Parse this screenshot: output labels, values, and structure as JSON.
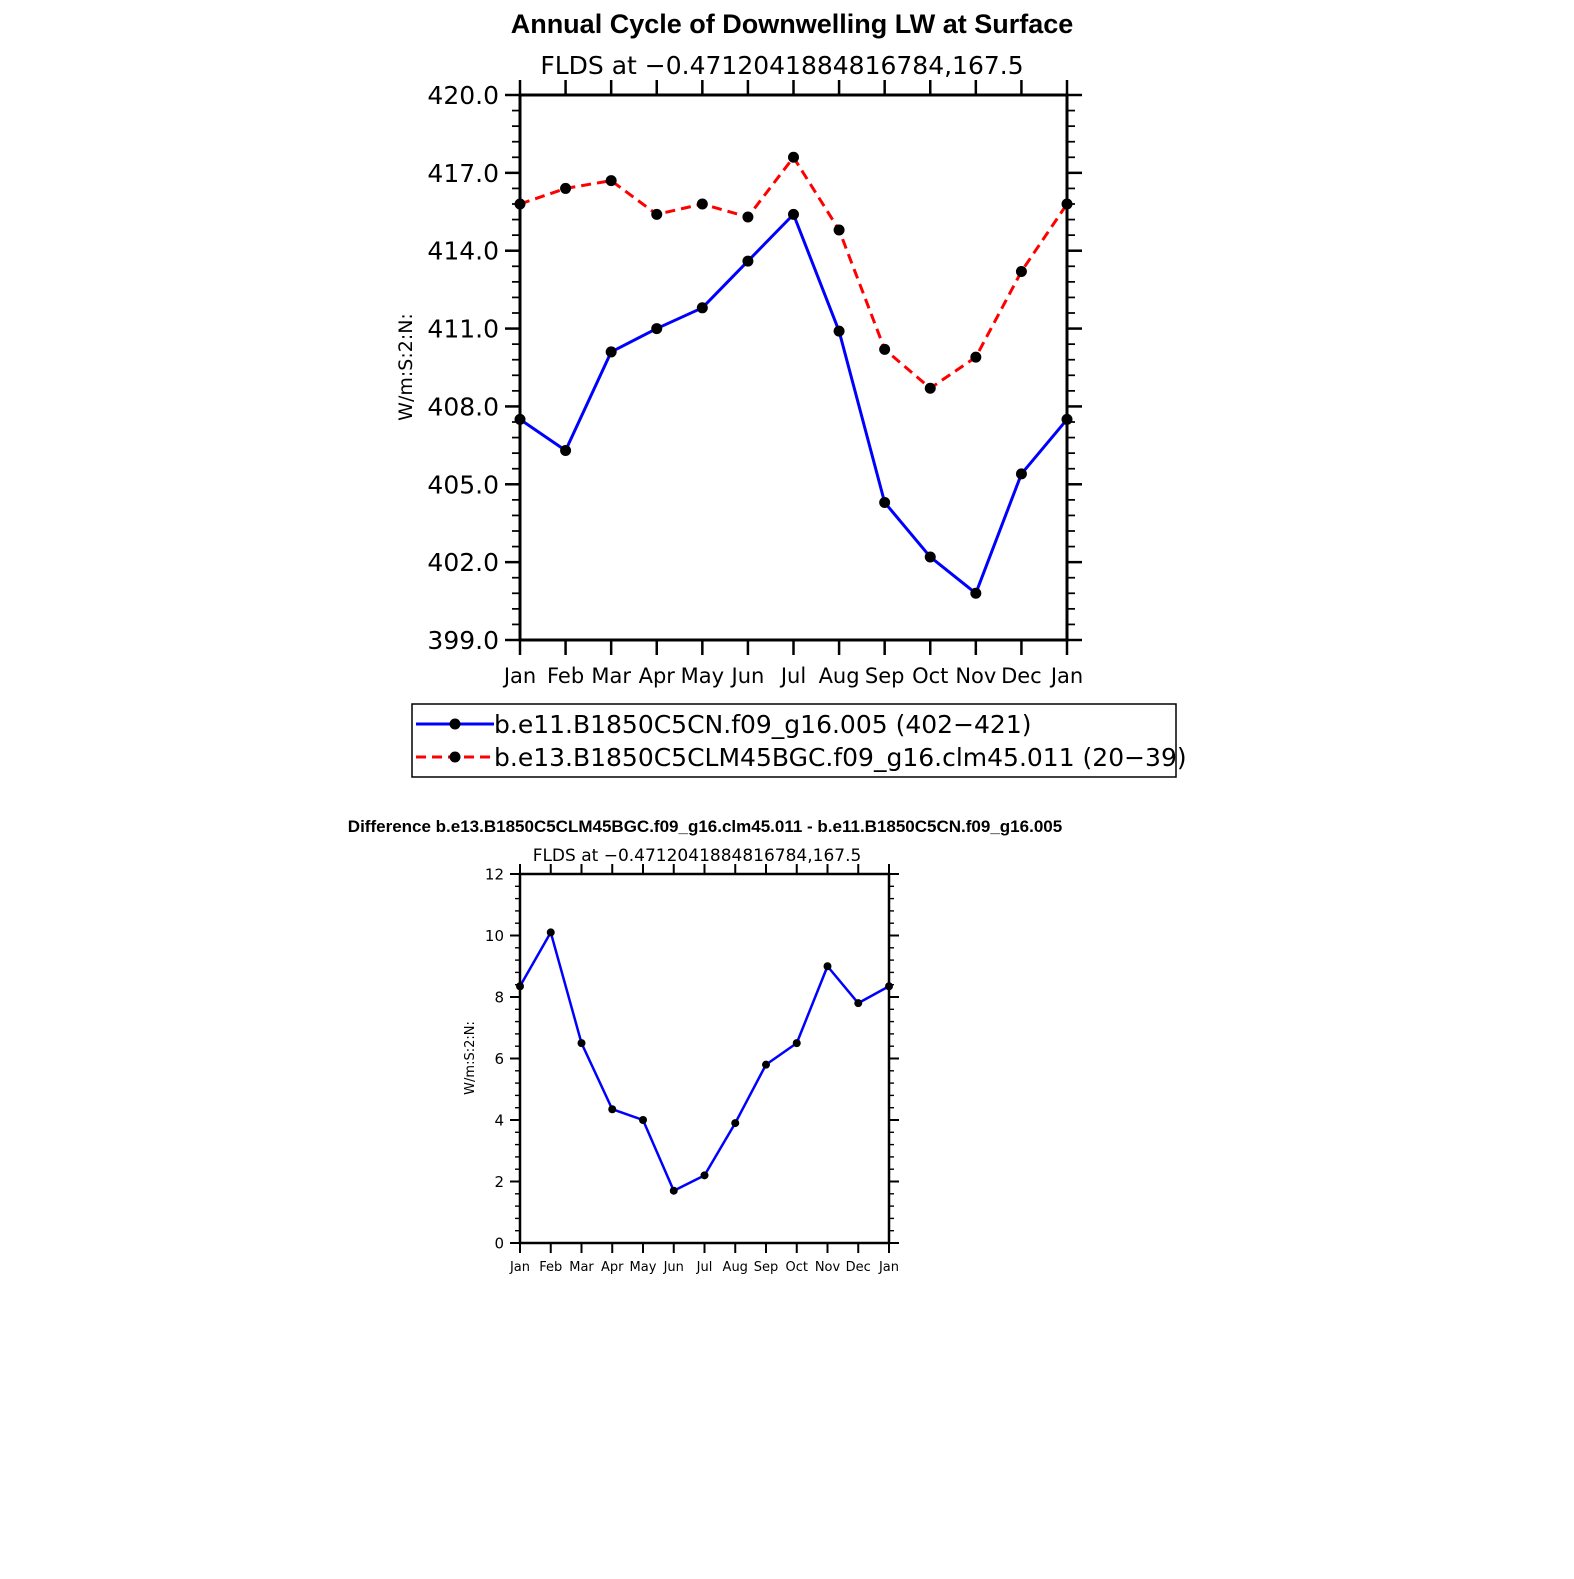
{
  "chart_data": [
    {
      "type": "line",
      "title": "Annual Cycle of Downwelling LW at Surface",
      "subtitle": "FLDS at −0.4712041884816784,167.5",
      "ylabel": "W/m:S:2:N:",
      "xlabel": "",
      "ylim": [
        399.0,
        420.0
      ],
      "yticks": [
        "399.0",
        "402.0",
        "405.0",
        "408.0",
        "411.0",
        "414.0",
        "417.0",
        "420.0"
      ],
      "categories": [
        "Jan",
        "Feb",
        "Mar",
        "Apr",
        "May",
        "Jun",
        "Jul",
        "Aug",
        "Sep",
        "Oct",
        "Nov",
        "Dec",
        "Jan"
      ],
      "grid": false,
      "legend_position": "bottom",
      "series": [
        {
          "name": "b.e11.B1850C5CN.f09_g16.005 (402−421)",
          "color": "#0000ff",
          "dash": "solid",
          "values": [
            407.5,
            406.3,
            410.1,
            411.0,
            411.8,
            413.6,
            415.4,
            410.9,
            404.3,
            402.2,
            400.8,
            405.4,
            407.5
          ]
        },
        {
          "name": "b.e13.B1850C5CLM45BGC.f09_g16.clm45.011 (20−39)",
          "color": "#ff0000",
          "dash": "dashed",
          "values": [
            415.8,
            416.4,
            416.7,
            415.4,
            415.8,
            415.3,
            417.6,
            414.8,
            410.2,
            408.7,
            409.9,
            413.2,
            415.8
          ]
        }
      ]
    },
    {
      "type": "line",
      "title": "Difference b.e13.B1850C5CLM45BGC.f09_g16.clm45.011 - b.e11.B1850C5CN.f09_g16.005",
      "subtitle": "FLDS at −0.4712041884816784,167.5",
      "ylabel": "W/m:S:2:N:",
      "xlabel": "",
      "ylim": [
        0,
        12
      ],
      "yticks": [
        "0",
        "2",
        "4",
        "6",
        "8",
        "10",
        "12"
      ],
      "categories": [
        "Jan",
        "Feb",
        "Mar",
        "Apr",
        "May",
        "Jun",
        "Jul",
        "Aug",
        "Sep",
        "Oct",
        "Nov",
        "Dec",
        "Jan"
      ],
      "grid": false,
      "series": [
        {
          "color": "#0000ff",
          "dash": "solid",
          "values": [
            8.35,
            10.1,
            6.5,
            4.35,
            4.0,
            1.7,
            2.2,
            3.9,
            5.8,
            6.5,
            9.0,
            7.8,
            8.35
          ]
        }
      ]
    }
  ]
}
